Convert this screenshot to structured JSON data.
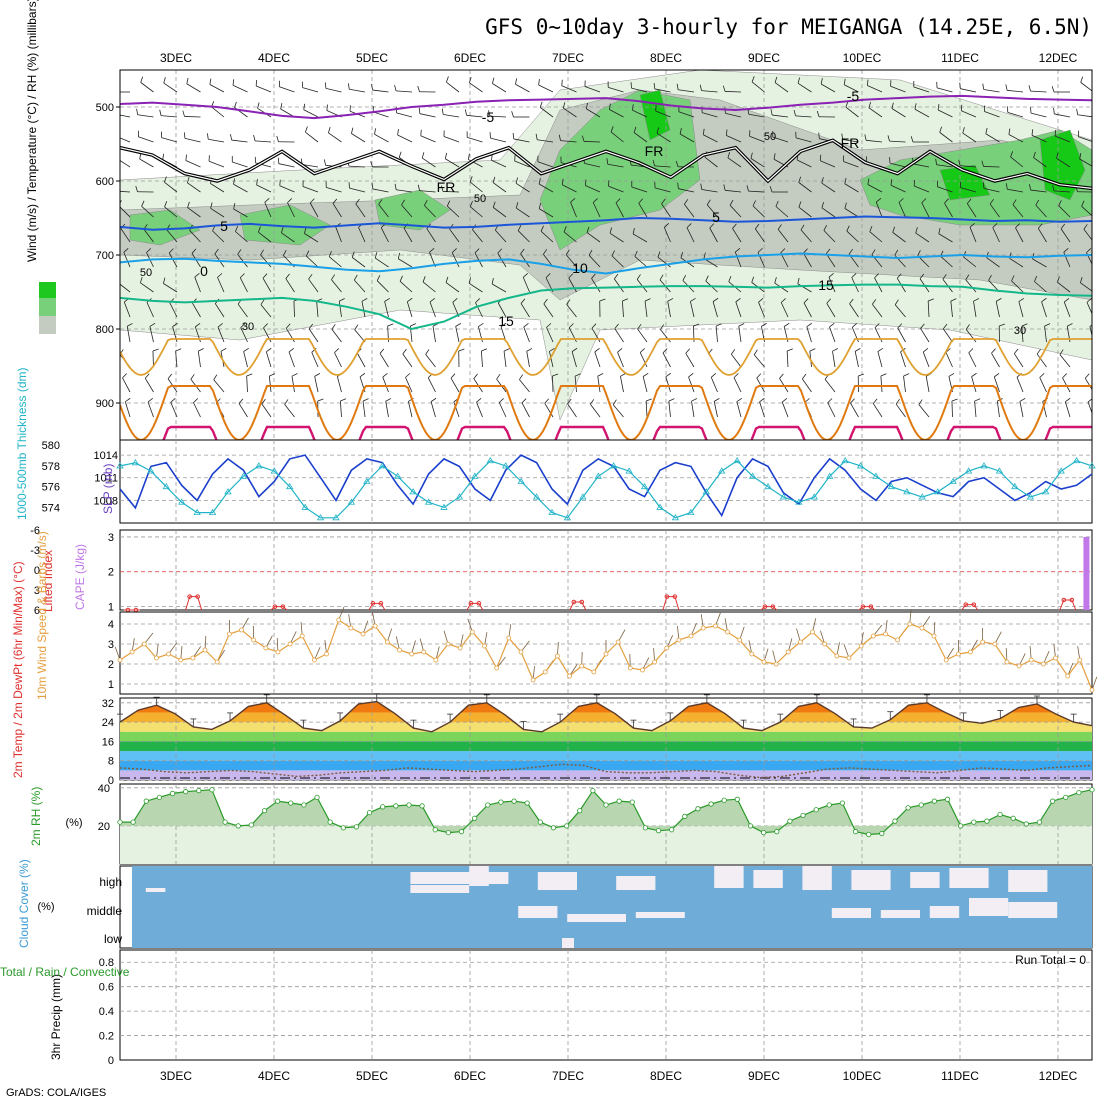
{
  "header": {
    "title": "GFS 0~10day 3-hourly for MEIGANGA (14.25E, 6.5N)",
    "credit": "GrADS: COLA/IGES"
  },
  "colors": {
    "rh_light": "#e6f2e1",
    "rh_mid": "#c4ccc2",
    "rh_green": "#78d07a",
    "rh_bright": "#17c917",
    "t_minus5": "#8a22b4",
    "t_5": "#1b56d8",
    "t_0": "#1aa0e8",
    "t_10": "#1aa0e8",
    "t_15": "#13b78a",
    "t_20": "#e0a030",
    "t_25": "#e07a10",
    "t_30": "#d21470",
    "slp": "#1a3fcc",
    "thickness": "#22b4c8",
    "cape": "#c178e8",
    "lifted": "#e03030",
    "wind10": "#e4a040",
    "rh2m": "#2a9a2a",
    "cloud": "#6fadd8",
    "clear": "#f2eef4"
  },
  "days": [
    "3DEC",
    "4DEC",
    "5DEC",
    "6DEC",
    "7DEC",
    "8DEC",
    "9DEC",
    "10DEC",
    "11DEC",
    "12DEC"
  ],
  "chart_data": [
    {
      "type": "line",
      "panel": "pressure-cross-section",
      "ylabel": "Wind (m/s) / Temperature (°C) / RH (%) (millibars)",
      "y_ticks": [
        500,
        600,
        700,
        800,
        900
      ],
      "ylim": [
        450,
        950
      ],
      "isotherms": [
        {
          "name": "-5",
          "levels": [
            496,
            494,
            497,
            500,
            506,
            512,
            515,
            511,
            506,
            500,
            497,
            493,
            491,
            490,
            489,
            488,
            492,
            498,
            502,
            504,
            501,
            497,
            494,
            490,
            488,
            486,
            485,
            487,
            489,
            490,
            491
          ]
        },
        {
          "name": "FR",
          "levels": [
            555,
            565,
            590,
            600,
            585,
            560,
            590,
            575,
            560,
            580,
            598,
            570,
            555,
            590,
            575,
            560,
            575,
            595,
            565,
            555,
            600,
            560,
            545,
            575,
            590,
            560,
            585,
            600,
            590,
            605,
            610
          ]
        },
        {
          "name": "5",
          "levels": [
            662,
            666,
            664,
            660,
            658,
            661,
            663,
            660,
            657,
            660,
            663,
            662,
            659,
            657,
            655,
            653,
            650,
            651,
            653,
            655,
            654,
            652,
            650,
            648,
            649,
            650,
            652,
            654,
            653,
            655,
            654
          ]
        },
        {
          "name": "0",
          "levels": [
            710,
            706,
            705,
            708,
            710,
            712,
            716,
            720,
            722,
            718,
            712,
            708,
            706,
            712,
            720,
            725,
            718,
            712,
            706,
            702,
            700,
            698,
            700,
            702,
            704,
            702,
            700,
            702,
            703,
            701,
            700
          ]
        },
        {
          "name": "15",
          "levels": [
            758,
            762,
            764,
            762,
            760,
            758,
            762,
            770,
            780,
            800,
            790,
            770,
            758,
            748,
            745,
            744,
            743,
            742,
            742,
            743,
            744,
            742,
            741,
            740,
            740,
            742,
            743,
            748,
            752,
            754,
            755
          ]
        }
      ],
      "labels": [
        "-5",
        "-5",
        "5",
        "5",
        "0",
        "10",
        "15",
        "15",
        "FR",
        "FR",
        "FR",
        "50",
        "50",
        "50",
        "30",
        "30"
      ]
    },
    {
      "type": "line",
      "panel": "slp-thickness",
      "ylabel": "SLP (mb)",
      "y2label": "1000-500mb Thickness (dm)",
      "slp_ticks": [
        "1014",
        "1011",
        "1008"
      ],
      "thickness_ticks": [
        "580",
        "578",
        "576",
        "574"
      ],
      "slp_lim": [
        1005,
        1016
      ],
      "thickness_lim": [
        572.5,
        580.5
      ],
      "series": [
        {
          "name": "SLP",
          "values": [
            1009.5,
            1007.0,
            1012.5,
            1013.0,
            1010.0,
            1008.0,
            1011.5,
            1013.5,
            1012.0,
            1008.5,
            1010.5,
            1013.5,
            1014.0,
            1011.0,
            1008.0,
            1012.0,
            1013.5,
            1013.0,
            1010.0,
            1007.5,
            1011.5,
            1013.5,
            1012.5,
            1009.5,
            1008.0,
            1012.0,
            1014.0,
            1013.0,
            1009.5,
            1007.5,
            1012.0,
            1013.5,
            1012.5,
            1009.5,
            1008.5,
            1012.0,
            1013.0,
            1012.5,
            1009.0,
            1006.0,
            1011.0,
            1013.5,
            1012.5,
            1009.0,
            1007.5,
            1011.0,
            1013.5,
            1012.0,
            1009.5,
            1008.0,
            1010.5,
            1011.0,
            1010.0,
            1009.0,
            1008.5,
            1010.5,
            1011.0,
            1009.5,
            1008.0,
            1009.0,
            1010.5,
            1009.5,
            1010.0,
            1011.5
          ]
        },
        {
          "name": "Thickness",
          "values": [
            578.0,
            578.3,
            577.5,
            576.0,
            574.5,
            573.5,
            573.5,
            575.5,
            577.0,
            578.0,
            577.5,
            576.0,
            574.0,
            573.0,
            573.0,
            574.5,
            576.5,
            578.0,
            577.0,
            575.5,
            574.5,
            574.0,
            575.0,
            577.0,
            578.5,
            578.0,
            576.5,
            575.0,
            573.5,
            573.0,
            575.0,
            577.0,
            578.0,
            577.5,
            576.0,
            574.0,
            573.0,
            573.5,
            575.5,
            577.5,
            578.5,
            577.0,
            576.0,
            575.0,
            574.5,
            575.0,
            577.0,
            578.5,
            578.0,
            577.0,
            576.0,
            575.5,
            575.0,
            575.5,
            576.5,
            577.5,
            578.0,
            577.5,
            576.0,
            575.0,
            575.5,
            577.5,
            578.5,
            578.0
          ]
        }
      ]
    },
    {
      "type": "bar",
      "panel": "cape-lifted-index",
      "ylabel": "CAPE (J/kg)",
      "y2label": "Lifted Index",
      "cape_ticks": [
        "3",
        "2",
        "1"
      ],
      "li_ticks": [
        "-6",
        "-3",
        "0",
        "3",
        "6"
      ],
      "cape_lim": [
        0.9,
        3.2
      ],
      "li_lim": [
        6,
        -6
      ],
      "cape_event": {
        "day_offset": 9.74,
        "value": 3.0
      },
      "lifted_index_peaks": [
        {
          "day_offset": 0.0,
          "value": 6.0
        },
        {
          "day_offset": 0.63,
          "value": 4.0
        },
        {
          "day_offset": 1.5,
          "value": 5.5
        },
        {
          "day_offset": 2.5,
          "value": 5.0
        },
        {
          "day_offset": 3.5,
          "value": 5.0
        },
        {
          "day_offset": 4.55,
          "value": 4.8
        },
        {
          "day_offset": 5.5,
          "value": 4.0
        },
        {
          "day_offset": 6.5,
          "value": 5.5
        },
        {
          "day_offset": 7.5,
          "value": 5.5
        },
        {
          "day_offset": 8.55,
          "value": 5.2
        },
        {
          "day_offset": 9.55,
          "value": 4.5
        }
      ]
    },
    {
      "type": "line",
      "panel": "10m-wind",
      "ylabel": "10m Wind Speed & Barbs (m/s)",
      "y_ticks": [
        "4",
        "3",
        "2",
        "1"
      ],
      "ylim": [
        0.5,
        4.6
      ],
      "series": [
        {
          "name": "10m Wind Speed",
          "values": [
            2.2,
            2.6,
            3.0,
            2.3,
            2.5,
            2.2,
            2.3,
            2.7,
            2.1,
            3.5,
            3.7,
            3.2,
            2.8,
            2.6,
            3.0,
            3.4,
            2.2,
            2.5,
            4.2,
            3.8,
            3.5,
            3.9,
            3.1,
            2.7,
            2.5,
            2.6,
            2.2,
            3.0,
            2.8,
            3.6,
            2.9,
            1.8,
            3.3,
            2.6,
            1.2,
            1.6,
            2.4,
            1.4,
            1.9,
            1.6,
            2.5,
            3.1,
            1.8,
            1.7,
            2.1,
            2.8,
            3.2,
            3.4,
            3.8,
            3.9,
            3.6,
            3.2,
            2.5,
            2.1,
            2.0,
            2.6,
            3.1,
            3.6,
            3.0,
            2.4,
            2.3,
            2.9,
            3.4,
            3.5,
            3.2,
            4.0,
            3.8,
            3.4,
            2.2,
            2.5,
            2.6,
            3.1,
            3.0,
            2.1,
            1.9,
            2.2,
            2.0,
            2.3,
            1.4,
            2.2,
            0.7
          ]
        }
      ]
    },
    {
      "type": "area",
      "panel": "2m-temp",
      "ylabel": "2m Temp / 2m DewPt (6hr Min/Max) (°C)",
      "y_ticks": [
        "32",
        "24",
        "16",
        "8",
        "0"
      ],
      "ylim": [
        0,
        34
      ],
      "series": [
        {
          "name": "2m Temp",
          "values": [
            24.0,
            29.0,
            31.0,
            27.5,
            22.0,
            21.0,
            24.5,
            30.5,
            32.0,
            27.0,
            21.5,
            20.5,
            24.5,
            31.5,
            32.5,
            27.5,
            21.5,
            20.0,
            24.0,
            31.0,
            32.0,
            27.0,
            21.0,
            20.0,
            24.0,
            30.5,
            32.0,
            27.5,
            21.5,
            20.5,
            24.5,
            30.5,
            32.0,
            27.5,
            21.5,
            20.5,
            24.0,
            30.5,
            32.0,
            27.5,
            22.0,
            21.5,
            25.0,
            31.0,
            32.0,
            28.0,
            24.5,
            23.5,
            25.5,
            30.0,
            31.5,
            27.5,
            24.0,
            22.5
          ]
        },
        {
          "name": "2m DewPt",
          "values": [
            5.0,
            4.5,
            3.5,
            3.0,
            3.5,
            4.0,
            3.5,
            2.5,
            1.5,
            2.0,
            3.0,
            3.5,
            4.0,
            5.0,
            4.5,
            4.0,
            3.5,
            4.0,
            4.5,
            5.5,
            6.5,
            6.0,
            3.5,
            3.0,
            3.0,
            3.5,
            4.0,
            3.5,
            2.0,
            1.0,
            1.5,
            3.0,
            4.5,
            5.0,
            4.5,
            4.0,
            3.5,
            3.0,
            4.0,
            5.0,
            4.5,
            4.0,
            5.0,
            5.5,
            6.0
          ]
        }
      ]
    },
    {
      "type": "area",
      "panel": "2m-rh",
      "ylabel": "2m RH (%)",
      "y_ticks": [
        "40",
        "20"
      ],
      "ylim": [
        0,
        42
      ],
      "series": [
        {
          "name": "2m RH",
          "values": [
            22.0,
            22.0,
            33.0,
            35.0,
            37.0,
            38.0,
            38.5,
            39.0,
            22.0,
            20.0,
            20.5,
            28.0,
            33.0,
            32.0,
            31.0,
            35.0,
            22.0,
            19.0,
            19.5,
            27.0,
            30.0,
            30.5,
            31.0,
            30.5,
            18.0,
            16.5,
            17.0,
            24.0,
            31.0,
            32.5,
            33.0,
            32.0,
            22.0,
            19.0,
            20.0,
            28.0,
            38.5,
            31.0,
            33.0,
            32.5,
            19.0,
            17.5,
            18.0,
            25.0,
            29.0,
            31.5,
            33.5,
            34.0,
            20.0,
            16.5,
            17.0,
            22.5,
            25.5,
            28.5,
            31.0,
            32.0,
            17.0,
            15.5,
            16.0,
            22.5,
            29.5,
            31.0,
            33.0,
            34.0,
            20.0,
            22.0,
            22.5,
            26.0,
            24.0,
            21.0,
            22.0,
            33.0,
            35.0,
            37.5,
            39.0
          ]
        }
      ]
    },
    {
      "type": "bar",
      "panel": "cloud-cover",
      "ylabel": "Cloud Cover (%)",
      "y_ticks": [
        "high",
        "middle",
        "low"
      ]
    },
    {
      "type": "bar",
      "panel": "precip",
      "ylabel": "3hr Precip (mm)",
      "y2label": "Total / Rain / Convective",
      "y_ticks": [
        "0.8",
        "0.6",
        "0.4",
        "0.2",
        "0"
      ],
      "ylim": [
        0,
        0.9
      ],
      "annotation": "Run Total = 0",
      "values": []
    }
  ]
}
